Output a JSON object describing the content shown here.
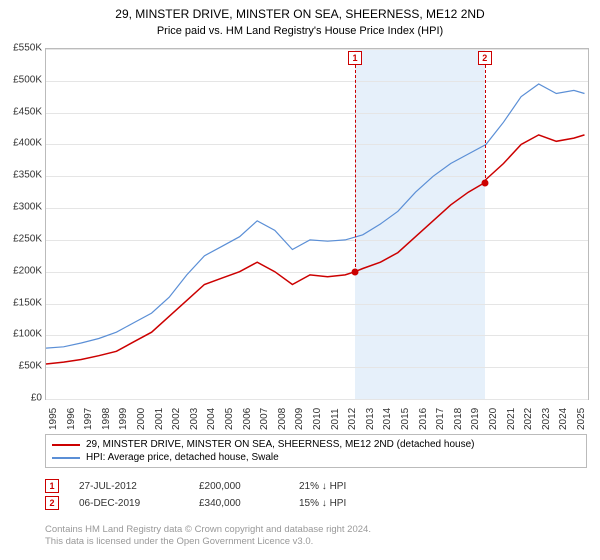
{
  "title_line1": "29, MINSTER DRIVE, MINSTER ON SEA, SHEERNESS, ME12 2ND",
  "title_line2": "Price paid vs. HM Land Registry's House Price Index (HPI)",
  "chart": {
    "type": "line",
    "background_color": "#ffffff",
    "grid_color": "#e5e5e5",
    "border_color": "#bbbbbb",
    "ylim": [
      0,
      550000
    ],
    "ytick_step": 50000,
    "ytick_labels": [
      "£0",
      "£50K",
      "£100K",
      "£150K",
      "£200K",
      "£250K",
      "£300K",
      "£350K",
      "£400K",
      "£450K",
      "£500K",
      "£550K"
    ],
    "xlim": [
      1995,
      2025.8
    ],
    "xtick_step": 1,
    "xtick_labels": [
      "1995",
      "1996",
      "1997",
      "1998",
      "1999",
      "2000",
      "2001",
      "2002",
      "2003",
      "2004",
      "2005",
      "2006",
      "2007",
      "2008",
      "2009",
      "2010",
      "2011",
      "2012",
      "2013",
      "2014",
      "2015",
      "2016",
      "2017",
      "2018",
      "2019",
      "2020",
      "2021",
      "2022",
      "2023",
      "2024",
      "2025"
    ],
    "highlight_band": {
      "x_start": 2012.56,
      "x_end": 2019.93,
      "color": "#e6f0fa"
    },
    "series": [
      {
        "name": "price_paid",
        "label": "29, MINSTER DRIVE, MINSTER ON SEA, SHEERNESS, ME12 2ND (detached house)",
        "color": "#cc0000",
        "line_width": 1.5,
        "points": [
          [
            1995,
            55000
          ],
          [
            1996,
            58000
          ],
          [
            1997,
            62000
          ],
          [
            1998,
            68000
          ],
          [
            1999,
            75000
          ],
          [
            2000,
            90000
          ],
          [
            2001,
            105000
          ],
          [
            2002,
            130000
          ],
          [
            2003,
            155000
          ],
          [
            2004,
            180000
          ],
          [
            2005,
            190000
          ],
          [
            2006,
            200000
          ],
          [
            2007,
            215000
          ],
          [
            2008,
            200000
          ],
          [
            2009,
            180000
          ],
          [
            2010,
            195000
          ],
          [
            2011,
            192000
          ],
          [
            2012,
            195000
          ],
          [
            2012.56,
            200000
          ],
          [
            2013,
            205000
          ],
          [
            2014,
            215000
          ],
          [
            2015,
            230000
          ],
          [
            2016,
            255000
          ],
          [
            2017,
            280000
          ],
          [
            2018,
            305000
          ],
          [
            2019,
            325000
          ],
          [
            2019.93,
            340000
          ],
          [
            2020,
            345000
          ],
          [
            2021,
            370000
          ],
          [
            2022,
            400000
          ],
          [
            2023,
            415000
          ],
          [
            2024,
            405000
          ],
          [
            2025,
            410000
          ],
          [
            2025.6,
            415000
          ]
        ]
      },
      {
        "name": "hpi",
        "label": "HPI: Average price, detached house, Swale",
        "color": "#5b8fd6",
        "line_width": 1.2,
        "points": [
          [
            1995,
            80000
          ],
          [
            1996,
            82000
          ],
          [
            1997,
            88000
          ],
          [
            1998,
            95000
          ],
          [
            1999,
            105000
          ],
          [
            2000,
            120000
          ],
          [
            2001,
            135000
          ],
          [
            2002,
            160000
          ],
          [
            2003,
            195000
          ],
          [
            2004,
            225000
          ],
          [
            2005,
            240000
          ],
          [
            2006,
            255000
          ],
          [
            2007,
            280000
          ],
          [
            2008,
            265000
          ],
          [
            2009,
            235000
          ],
          [
            2010,
            250000
          ],
          [
            2011,
            248000
          ],
          [
            2012,
            250000
          ],
          [
            2013,
            258000
          ],
          [
            2014,
            275000
          ],
          [
            2015,
            295000
          ],
          [
            2016,
            325000
          ],
          [
            2017,
            350000
          ],
          [
            2018,
            370000
          ],
          [
            2019,
            385000
          ],
          [
            2020,
            400000
          ],
          [
            2021,
            435000
          ],
          [
            2022,
            475000
          ],
          [
            2023,
            495000
          ],
          [
            2024,
            480000
          ],
          [
            2025,
            485000
          ],
          [
            2025.6,
            480000
          ]
        ]
      }
    ],
    "markers": [
      {
        "id": "1",
        "x": 2012.56,
        "y": 200000
      },
      {
        "id": "2",
        "x": 2019.93,
        "y": 340000
      }
    ]
  },
  "legend": {
    "border_color": "#bbbbbb",
    "items": [
      {
        "color": "#cc0000",
        "label": "29, MINSTER DRIVE, MINSTER ON SEA, SHEERNESS, ME12 2ND (detached house)"
      },
      {
        "color": "#5b8fd6",
        "label": "HPI: Average price, detached house, Swale"
      }
    ]
  },
  "footnotes": [
    {
      "id": "1",
      "date": "27-JUL-2012",
      "price": "£200,000",
      "pct": "21% ↓ HPI"
    },
    {
      "id": "2",
      "date": "06-DEC-2019",
      "price": "£340,000",
      "pct": "15% ↓ HPI"
    }
  ],
  "attribution_line1": "Contains HM Land Registry data © Crown copyright and database right 2024.",
  "attribution_line2": "This data is licensed under the Open Government Licence v3.0.",
  "css": {
    "title_fontsize": 12,
    "axis_label_fontsize": 10,
    "legend_fontsize": 10,
    "attribution_color": "#999999"
  }
}
